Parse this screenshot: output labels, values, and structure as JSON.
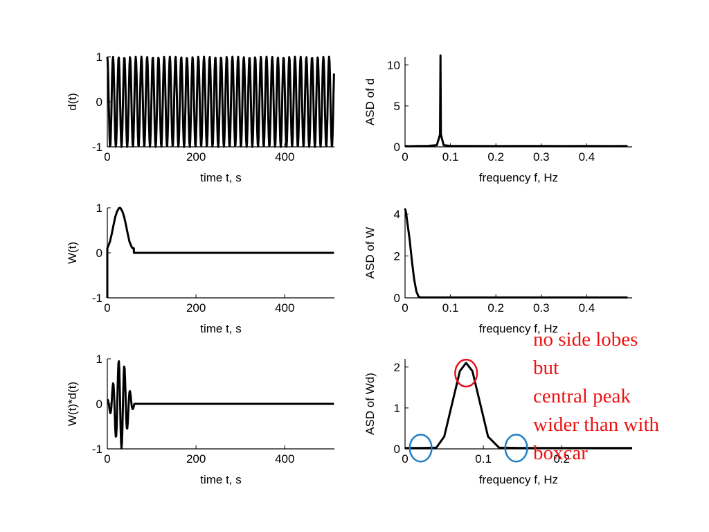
{
  "chart_data": [
    {
      "id": "d",
      "type": "line",
      "xlabel": "time t, s",
      "ylabel": "d(t)",
      "xlim": [
        0,
        512
      ],
      "ylim": [
        -1,
        1
      ],
      "xticks": [
        0,
        200,
        400
      ],
      "yticks": [
        -1,
        0,
        1
      ],
      "signal": {
        "kind": "cosine",
        "frequency_hz": 0.078,
        "t_start": 0,
        "t_end": 511,
        "dt": 1,
        "amplitude": 1
      }
    },
    {
      "id": "asd_d",
      "type": "line",
      "xlabel": "frequency f, Hz",
      "ylabel": "ASD of d",
      "xlim": [
        0,
        0.5
      ],
      "ylim": [
        0,
        11
      ],
      "xticks": [
        0,
        0.1,
        0.2,
        0.3,
        0.4
      ],
      "yticks": [
        0,
        5,
        10
      ],
      "x": [
        0,
        0.01,
        0.03,
        0.05,
        0.07,
        0.077,
        0.078,
        0.079,
        0.085,
        0.1,
        0.15,
        0.2,
        0.25,
        0.3,
        0.35,
        0.4,
        0.45,
        0.49
      ],
      "y": [
        0.1,
        0.08,
        0.1,
        0.12,
        0.2,
        1.5,
        11.3,
        1.5,
        0.2,
        0.12,
        0.1,
        0.09,
        0.1,
        0.1,
        0.09,
        0.1,
        0.09,
        0.1
      ]
    },
    {
      "id": "W",
      "type": "line",
      "xlabel": "time t, s",
      "ylabel": "W(t)",
      "xlim": [
        0,
        512
      ],
      "ylim": [
        -1,
        1
      ],
      "xticks": [
        0,
        200,
        400
      ],
      "yticks": [
        -1,
        0,
        1
      ],
      "x": [
        0,
        0,
        2,
        6,
        10,
        14,
        18,
        22,
        26,
        28,
        30,
        34,
        38,
        42,
        46,
        50,
        54,
        57,
        60,
        60,
        511
      ],
      "y": [
        -1,
        0.1,
        0.15,
        0.25,
        0.42,
        0.62,
        0.8,
        0.92,
        0.99,
        1.0,
        0.99,
        0.92,
        0.8,
        0.62,
        0.42,
        0.25,
        0.15,
        0.1,
        0.1,
        0,
        0
      ]
    },
    {
      "id": "asd_W",
      "type": "line",
      "xlabel": "frequency f, Hz",
      "ylabel": "ASD of W",
      "xlim": [
        0,
        0.5
      ],
      "ylim": [
        0,
        4.3
      ],
      "xticks": [
        0,
        0.1,
        0.2,
        0.3,
        0.4
      ],
      "yticks": [
        0,
        2,
        4
      ],
      "x": [
        0,
        0.002,
        0.005,
        0.01,
        0.015,
        0.02,
        0.025,
        0.03,
        0.035,
        0.05,
        0.1,
        0.2,
        0.3,
        0.4,
        0.49
      ],
      "y": [
        4.25,
        4.1,
        3.6,
        2.8,
        1.8,
        0.9,
        0.3,
        0.05,
        0.02,
        0.02,
        0.02,
        0.02,
        0.02,
        0.02,
        0.02
      ]
    },
    {
      "id": "Wd",
      "type": "line",
      "xlabel": "time t, s",
      "ylabel": "W(t)*d(t)",
      "xlim": [
        0,
        512
      ],
      "ylim": [
        -1,
        1
      ],
      "xticks": [
        0,
        200,
        400
      ],
      "yticks": [
        -1,
        0,
        1
      ],
      "signal": {
        "kind": "windowed-cosine",
        "frequency_hz": 0.078,
        "t_start": 0,
        "t_end": 511,
        "dt": 1,
        "window_end": 60
      }
    },
    {
      "id": "asd_Wd",
      "type": "line",
      "xlabel": "frequency f, Hz",
      "ylabel": "ASD of Wd)",
      "xlim": [
        0,
        0.29
      ],
      "ylim": [
        0,
        2.2
      ],
      "xticks": [
        0,
        0.1,
        0.2
      ],
      "yticks": [
        0,
        1,
        2
      ],
      "x": [
        0,
        0.02,
        0.04,
        0.05,
        0.06,
        0.07,
        0.078,
        0.086,
        0.096,
        0.106,
        0.12,
        0.15,
        0.2,
        0.25,
        0.29
      ],
      "y": [
        0.02,
        0.02,
        0.03,
        0.3,
        1.1,
        1.9,
        2.1,
        1.9,
        1.1,
        0.3,
        0.03,
        0.02,
        0.02,
        0.02,
        0.02
      ]
    }
  ],
  "annotation": {
    "lines": [
      "no side lobes",
      "but",
      "central peak",
      "wider than with",
      "boxcar"
    ],
    "color": "#ee1111",
    "circles": [
      {
        "name": "central-peak-circle",
        "color": "#e8101a",
        "panel": "asd_Wd",
        "center": [
          0.078,
          1.85
        ],
        "radius": [
          0.014,
          0.33
        ]
      },
      {
        "name": "left-sidelobe-circle",
        "color": "#1f7fc4",
        "panel": "asd_Wd",
        "center": [
          0.02,
          0.02
        ],
        "radius": [
          0.014,
          0.33
        ]
      },
      {
        "name": "right-sidelobe-circle",
        "color": "#1f7fc4",
        "panel": "asd_Wd",
        "center": [
          0.142,
          0.02
        ],
        "radius": [
          0.014,
          0.33
        ]
      }
    ]
  }
}
